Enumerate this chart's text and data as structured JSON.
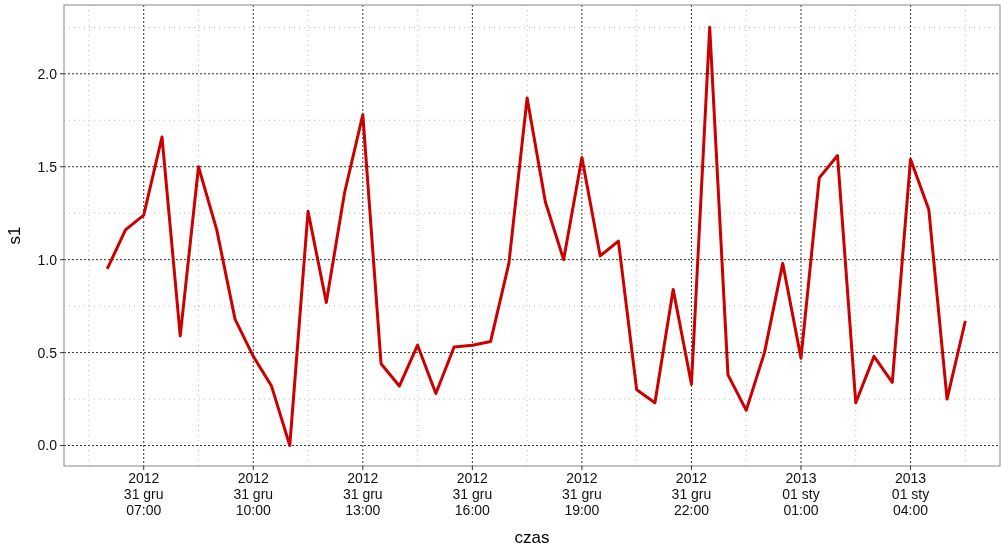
{
  "chart_data": {
    "type": "line",
    "xlabel": "czas",
    "ylabel": "s1",
    "x": [
      "2012-12-31T06:00",
      "2012-12-31T06:30",
      "2012-12-31T07:00",
      "2012-12-31T07:30",
      "2012-12-31T08:00",
      "2012-12-31T08:30",
      "2012-12-31T09:00",
      "2012-12-31T09:30",
      "2012-12-31T10:00",
      "2012-12-31T10:30",
      "2012-12-31T11:00",
      "2012-12-31T11:30",
      "2012-12-31T12:00",
      "2012-12-31T12:30",
      "2012-12-31T13:00",
      "2012-12-31T13:30",
      "2012-12-31T14:00",
      "2012-12-31T14:30",
      "2012-12-31T15:00",
      "2012-12-31T15:30",
      "2012-12-31T16:00",
      "2012-12-31T16:30",
      "2012-12-31T17:00",
      "2012-12-31T17:30",
      "2012-12-31T18:00",
      "2012-12-31T18:30",
      "2012-12-31T19:00",
      "2012-12-31T19:30",
      "2012-12-31T20:00",
      "2012-12-31T20:30",
      "2012-12-31T21:00",
      "2012-12-31T21:30",
      "2012-12-31T22:00",
      "2012-12-31T22:30",
      "2012-12-31T23:00",
      "2012-12-31T23:30",
      "2013-01-01T00:00",
      "2013-01-01T00:30",
      "2013-01-01T01:00",
      "2013-01-01T01:30",
      "2013-01-01T02:00",
      "2013-01-01T02:30",
      "2013-01-01T03:00",
      "2013-01-01T03:30",
      "2013-01-01T04:00",
      "2013-01-01T04:30",
      "2013-01-01T05:00",
      "2013-01-01T05:30"
    ],
    "series": [
      {
        "color": "#cc0000",
        "values": [
          0.95,
          1.16,
          1.24,
          1.66,
          0.59,
          1.5,
          1.16,
          0.68,
          0.48,
          0.32,
          0.0,
          1.26,
          0.77,
          1.36,
          1.78,
          0.44,
          0.32,
          0.54,
          0.28,
          0.53,
          0.54,
          0.56,
          0.98,
          1.87,
          1.31,
          1.0,
          1.55,
          1.02,
          1.1,
          0.3,
          0.23,
          0.84,
          0.33,
          2.25,
          0.38,
          0.19,
          0.5,
          0.98,
          0.47,
          1.44,
          1.56,
          0.23,
          0.48,
          0.34,
          1.54,
          1.27,
          0.25,
          0.67
        ]
      }
    ],
    "xlim": [
      "2012-12-31T04:49",
      "2013-01-01T06:27"
    ],
    "xticks": [
      {
        "value": "2012-12-31T07:00",
        "label": "2012\n31 gru\n07:00"
      },
      {
        "value": "2012-12-31T10:00",
        "label": "2012\n31 gru\n10:00"
      },
      {
        "value": "2012-12-31T13:00",
        "label": "2012\n31 gru\n13:00"
      },
      {
        "value": "2012-12-31T16:00",
        "label": "2012\n31 gru\n16:00"
      },
      {
        "value": "2012-12-31T19:00",
        "label": "2012\n31 gru\n19:00"
      },
      {
        "value": "2012-12-31T22:00",
        "label": "2012\n31 gru\n22:00"
      },
      {
        "value": "2013-01-01T01:00",
        "label": "2013\n01 sty\n01:00"
      },
      {
        "value": "2013-01-01T04:00",
        "label": "2013\n01 sty\n04:00"
      }
    ],
    "ylim": [
      -0.11,
      2.37
    ],
    "yticks": [
      {
        "value": 0,
        "label": "0.0"
      },
      {
        "value": 0.5,
        "label": "0.5"
      },
      {
        "value": 1,
        "label": "1.0"
      },
      {
        "value": 1.5,
        "label": "1.5"
      },
      {
        "value": 2,
        "label": "2.0"
      }
    ],
    "grid": true,
    "marker": "none",
    "line_style": "solid"
  }
}
